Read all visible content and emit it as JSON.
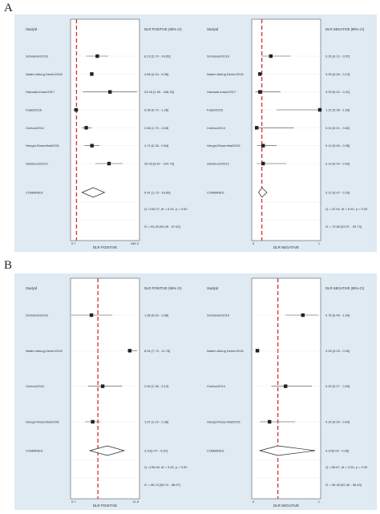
{
  "panels": [
    {
      "letter": "A",
      "charts": [
        {
          "type": "forest",
          "header": {
            "study": "StudyId",
            "effect": "DLR POSITIVE (95% CI)"
          },
          "axis": {
            "label": "DLR POSITIVE",
            "ticks": [
              "0.7",
              "446.3"
            ],
            "scale": "log",
            "range": [
              0.7,
              446.3
            ],
            "reference": 1
          },
          "studies": [
            {
              "name": "Schneider/2019",
              "estimate": 8.13,
              "ci": [
                2.7,
                24.5
              ],
              "label": "8.13 [2.70 - 24.50]"
            },
            {
              "name": "Nadim Akbug Demir/2018",
              "estimate": 4.65,
              "ci": [
                4.04,
                5.36
              ],
              "label": "4.65 [4.04 - 5.36]"
            },
            {
              "name": "Hamada Imam/2017",
              "estimate": 29.18,
              "ci": [
                1.9,
                448.33
              ],
              "label": "29.18 [1.90 - 448.33]"
            },
            {
              "name": "Fadel/2016",
              "estimate": 0.96,
              "ci": [
                0.73,
                1.26
              ],
              "label": "0.96 [0.73 - 1.26]"
            },
            {
              "name": "Centou/2014",
              "estimate": 2.66,
              "ci": [
                1.7,
                4.63
              ],
              "label": "2.66 [1.70 - 4.63]"
            },
            {
              "name": "Hengel-Rosenthal/2001",
              "estimate": 4.74,
              "ci": [
                2.28,
                9.84
              ],
              "label": "4.74 [2.28 - 9.84]"
            },
            {
              "name": "Steinbuch/2012",
              "estimate": 26.43,
              "ci": [
                6.67,
                104.79
              ],
              "label": "26.43 [6.67 - 104.79]"
            }
          ],
          "combined": {
            "name": "COMBINED",
            "estimate": 5.41,
            "ci": [
              1.73,
              16.89
            ],
            "label": "5.41 [1.73 - 16.89]"
          },
          "stats": [
            "Q =100.07, df = 6.00, p = 0.00",
            "I2 = 93.49 [93.49 - 97.62]"
          ]
        },
        {
          "type": "forest",
          "header": {
            "study": "StudyId",
            "effect": "DLR NEGATIVE (95% CI)"
          },
          "axis": {
            "label": "DLR NEGATIVE",
            "ticks": [
              "0",
              "1"
            ],
            "scale": "linear",
            "range": [
              0,
              1
            ],
            "reference": 0.12
          },
          "studies": [
            {
              "name": "Schneider/2019",
              "estimate": 0.26,
              "ci": [
                0.12,
                0.57
              ],
              "label": "0.26 [0.12 - 0.57]"
            },
            {
              "name": "Nadim Akbug Demir/2018",
              "estimate": 0.09,
              "ci": [
                0.06,
                0.13
              ],
              "label": "0.09 [0.06 - 0.13]"
            },
            {
              "name": "Hamada Imam/2017",
              "estimate": 0.09,
              "ci": [
                0.02,
                0.41
              ],
              "label": "0.09 [0.02 - 0.41]"
            },
            {
              "name": "Fadel/2016",
              "estimate": 1.22,
              "ci": [
                0.35,
                1.6
              ],
              "label": "1.22 [0.35 - 1.60]"
            },
            {
              "name": "Centou/2014",
              "estimate": 0.04,
              "ci": [
                0.01,
                0.62
              ],
              "label": "0.04 [0.01 - 0.62]"
            },
            {
              "name": "Hengel-Rosenthal/2001",
              "estimate": 0.14,
              "ci": [
                0.05,
                0.35
              ],
              "label": "0.14 [0.05 - 0.35]"
            },
            {
              "name": "Steinbuch/2012",
              "estimate": 0.14,
              "ci": [
                0.04,
                0.5
              ],
              "label": "0.14 [0.04 - 0.50]"
            }
          ],
          "combined": {
            "name": "COMBINED",
            "estimate": 0.12,
            "ci": [
              0.07,
              0.2
            ],
            "label": "0.12 [0.07 - 0.20]"
          },
          "stats": [
            "Q = 22.94, df = 6.00, p = 0.00",
            "I2 = 73.85 [53.97 - 93.73]"
          ]
        }
      ]
    },
    {
      "letter": "B",
      "charts": [
        {
          "type": "forest",
          "header": {
            "study": "StudyId",
            "effect": "DLR POSITIVE (95% CI)"
          },
          "axis": {
            "label": "DLR POSITIVE",
            "ticks": [
              "0.7",
              "11.8"
            ],
            "scale": "log",
            "range": [
              0.7,
              11.8
            ],
            "reference": 2.1
          },
          "studies": [
            {
              "name": "Schneider/2019",
              "estimate": 1.58,
              "ci": [
                0.63,
                3.96
              ],
              "label": "1.58 [0.63 - 3.96]"
            },
            {
              "name": "Nadim Akbug Demir/2018",
              "estimate": 8.54,
              "ci": [
                7.73,
                11.76
              ],
              "label": "8.54 [7.73 - 11.76]"
            },
            {
              "name": "Centou/2016",
              "estimate": 2.59,
              "ci": [
                1.36,
                6.12
              ],
              "label": "2.59 [1.36 - 6.12]"
            },
            {
              "name": "Hengel-Rosenthal/2001",
              "estimate": 1.67,
              "ci": [
                1.19,
                2.36
              ],
              "label": "1.67 [1.19 - 2.36]"
            }
          ],
          "combined": {
            "name": "COMBINED",
            "estimate": 3.2,
            "ci": [
              1.47,
              6.67
            ],
            "label": "3.20[1.47 - 6.67]"
          },
          "stats": [
            "Q =136.65, df = 3.00, p = 0.00",
            "I2 = 98.74 [98.74 - 98.97]"
          ]
        },
        {
          "type": "forest",
          "header": {
            "study": "StudyId",
            "effect": "DLR NEGATIVE (95% CI)"
          },
          "axis": {
            "label": "DLR NEGATIVE",
            "ticks": [
              "0",
              "1"
            ],
            "scale": "linear",
            "range": [
              0,
              1
            ],
            "reference": 0.37
          },
          "studies": [
            {
              "name": "Schneider/2019",
              "estimate": 0.76,
              "ci": [
                0.49,
                1.0
              ],
              "label": "0.76 [0.49 - 1.00]"
            },
            {
              "name": "Nadim Akbug Demir/2018",
              "estimate": 0.05,
              "ci": [
                0.03,
                0.09
              ],
              "label": "0.05 [0.03 - 0.09]"
            },
            {
              "name": "Centou/2014",
              "estimate": 0.49,
              "ci": [
                0.27,
                0.9
              ],
              "label": "0.49 [0.27 - 0.90]"
            },
            {
              "name": "Hengel-Rosenthal/2001",
              "estimate": 0.24,
              "ci": [
                0.09,
                0.64
              ],
              "label": "0.24 [0.09 - 0.64]"
            }
          ],
          "combined": {
            "name": "COMBINED",
            "estimate": 0.37,
            "ci": [
              0.09,
              0.95
            ],
            "label": "0.37[0.09 - 0.95]"
          },
          "stats": [
            "Q = 65.67, df = 3.00, p = 0.00",
            "I2 = 95.45 [92.46 - 98.43]"
          ]
        }
      ]
    }
  ],
  "colors": {
    "panel_bg": "#dfeaf2",
    "plot_bg": "#ffffff",
    "reference_line": "#d32f2f",
    "marker": "#222222",
    "ci_line": "#444444"
  }
}
